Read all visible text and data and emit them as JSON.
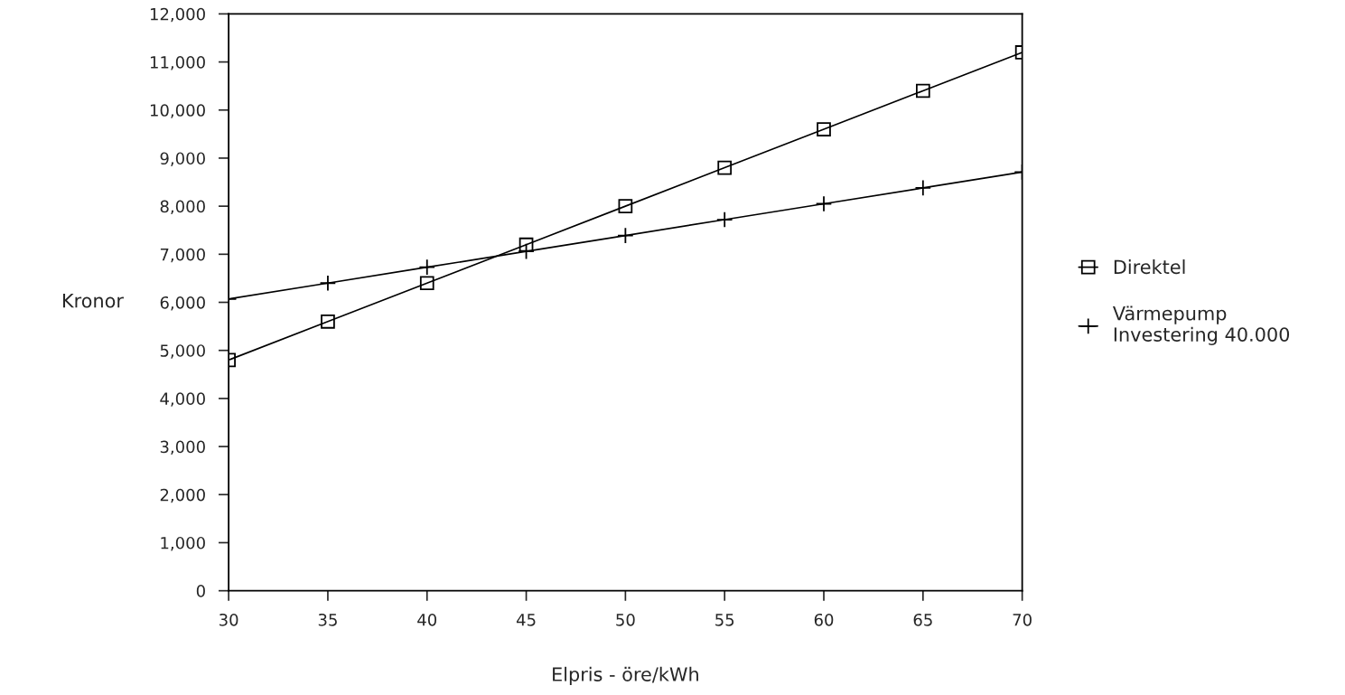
{
  "chart_data": {
    "type": "line",
    "xlabel": "Elpris - öre/kWh",
    "ylabel": "Kronor",
    "x": [
      30,
      35,
      40,
      45,
      50,
      55,
      60,
      65,
      70
    ],
    "series": [
      {
        "name": "Direktel",
        "color": "#000000",
        "marker": "square",
        "values": [
          4800,
          5600,
          6400,
          7200,
          8000,
          8800,
          9600,
          10400,
          11200
        ]
      },
      {
        "name": "Värmepump\nInvestering 40.000",
        "color": "#000000",
        "marker": "cross",
        "values": [
          6070,
          6400,
          6730,
          7060,
          7390,
          7720,
          8050,
          8380,
          8710
        ]
      }
    ],
    "xlim": [
      30,
      70
    ],
    "xticks": [
      30,
      35,
      40,
      45,
      50,
      55,
      60,
      65,
      70
    ],
    "ylim": [
      0,
      12000
    ],
    "yticks": [
      0,
      {
        "value": 1000,
        "label": "1,000"
      },
      {
        "value": 2000,
        "label": "2,000"
      },
      {
        "value": 3000,
        "label": "3,000"
      },
      {
        "value": 4000,
        "label": "4,000"
      },
      {
        "value": 5000,
        "label": "5,000"
      },
      {
        "value": 6000,
        "label": "6,000"
      },
      {
        "value": 7000,
        "label": "7,000"
      },
      {
        "value": 8000,
        "label": "8,000"
      },
      {
        "value": 9000,
        "label": "9,000"
      },
      {
        "value": 10000,
        "label": "10,000"
      },
      {
        "value": 11000,
        "label": "11,000"
      },
      {
        "value": 12000,
        "label": "12,000"
      }
    ],
    "legend": "right",
    "line_style": "solid"
  }
}
